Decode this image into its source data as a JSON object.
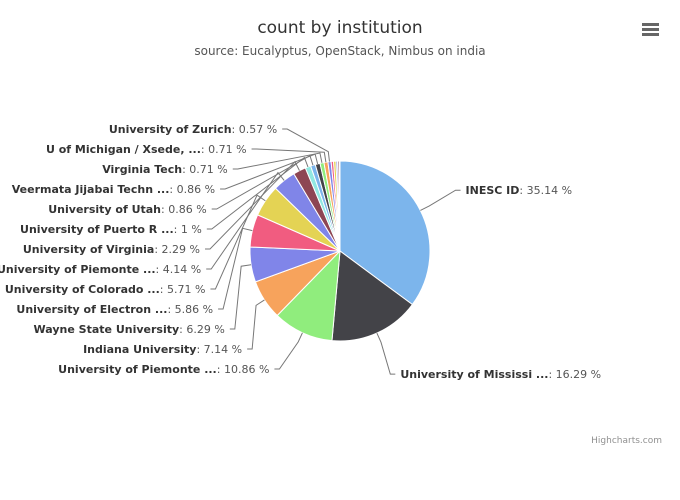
{
  "chart_data": {
    "type": "pie",
    "title": "count by institution",
    "subtitle": "source: Eucalyptus, OpenStack, Nimbus on india",
    "credits": "Highcharts.com",
    "categories": [
      "INESC ID",
      "University of Mississi ...",
      "University of Piemonte ...",
      "Indiana University",
      "Wayne State University",
      "University of Electron ...",
      "University of Colorado ...",
      "University of Piemonte ...",
      "University of Virginia",
      "University of Puerto R ...",
      "University of Utah",
      "Veermata Jijabai Techn ...",
      "Virginia Tech",
      "U of Michigan / Xsede, ...",
      "University of Zurich",
      null,
      null,
      null,
      null,
      null
    ],
    "values": [
      35.14,
      16.29,
      10.86,
      7.14,
      6.29,
      5.86,
      5.71,
      4.14,
      2.29,
      1,
      0.86,
      0.86,
      0.71,
      0.71,
      0.57,
      0.43,
      0.43,
      0.29,
      0.29,
      0.14
    ],
    "value_labels": [
      ": 35.14 %",
      ": 16.29 %",
      ": 10.86 %",
      ": 7.14 %",
      ": 6.29 %",
      ": 5.86 %",
      ": 5.71 %",
      ": 4.14 %",
      ": 2.29 %",
      ": 1 %",
      ": 0.86 %",
      ": 0.86 %",
      ": 0.71 %",
      ": 0.71 %",
      ": 0.57 %",
      null,
      null,
      null,
      null,
      null
    ],
    "colors": [
      "#7cb5ec",
      "#434348",
      "#90ed7d",
      "#f7a35c",
      "#8085e9",
      "#f15c80",
      "#e4d354",
      "#8085e8",
      "#8d4653",
      "#91e8e1",
      "#7cb5ec",
      "#434348",
      "#90ed7d",
      "#f7a35c",
      "#8085e9",
      "#f15c80",
      "#e4d354",
      "#8085e8",
      "#8d4653",
      "#91e8e1"
    ]
  }
}
